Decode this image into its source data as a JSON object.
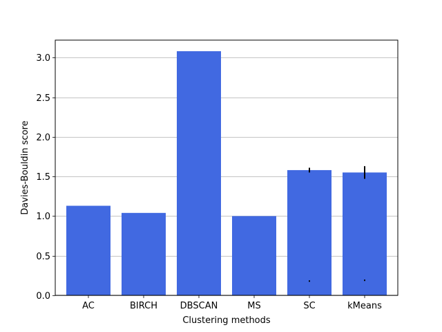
{
  "chart_data": {
    "type": "bar",
    "title": "",
    "xlabel": "Clustering methods",
    "ylabel": "Davies-Bouldin score",
    "categories": [
      "AC",
      "BIRCH",
      "DBSCAN",
      "MS",
      "SC",
      "kMeans"
    ],
    "values": [
      1.13,
      1.04,
      3.08,
      1.0,
      1.58,
      1.55
    ],
    "error": [
      null,
      null,
      null,
      null,
      0.03,
      0.08
    ],
    "outliers": [
      {
        "category": "SC",
        "value": 0.18
      },
      {
        "category": "kMeans",
        "value": 0.19
      }
    ],
    "ylim": [
      0,
      3.22
    ],
    "yticks": [
      0.0,
      0.5,
      1.0,
      1.5,
      2.0,
      2.5,
      3.0
    ],
    "ytick_labels": [
      "0.0",
      "0.5",
      "1.0",
      "1.5",
      "2.0",
      "2.5",
      "3.0"
    ],
    "grid": "y",
    "bar_color": "#4169e1",
    "grid_color": "#b0b0b0",
    "error_color": "#000000"
  }
}
